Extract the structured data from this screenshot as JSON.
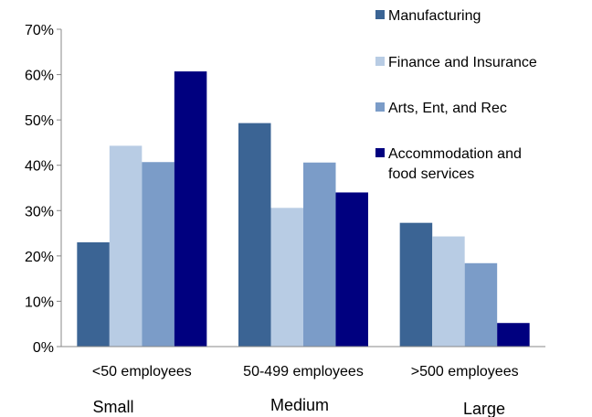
{
  "chart_data": {
    "type": "bar",
    "categories": [
      "<50 employees",
      "50-499 employees",
      ">500 employees"
    ],
    "group_labels": [
      "Small",
      "Medium",
      "Large"
    ],
    "series": [
      {
        "name": "Manufacturing",
        "values": [
          23,
          49.3,
          27.3
        ],
        "color": "#3b6494"
      },
      {
        "name": "Finance and Insurance",
        "values": [
          44.3,
          30.6,
          24.3
        ],
        "color": "#b8cce4"
      },
      {
        "name": "Arts, Ent, and Rec",
        "values": [
          40.7,
          40.6,
          18.4
        ],
        "color": "#7b9cc8"
      },
      {
        "name": "Accommodation and food services",
        "legend_lines": [
          "Accommodation and",
          "food services"
        ],
        "values": [
          60.7,
          34,
          5.2
        ],
        "color": "#00007f"
      }
    ],
    "ylim": [
      0,
      70
    ],
    "yticks": [
      "0%",
      "10%",
      "20%",
      "30%",
      "40%",
      "50%",
      "60%",
      "70%"
    ],
    "ytick_values": [
      0,
      10,
      20,
      30,
      40,
      50,
      60,
      70
    ],
    "grid": false,
    "legend_position": "right"
  }
}
